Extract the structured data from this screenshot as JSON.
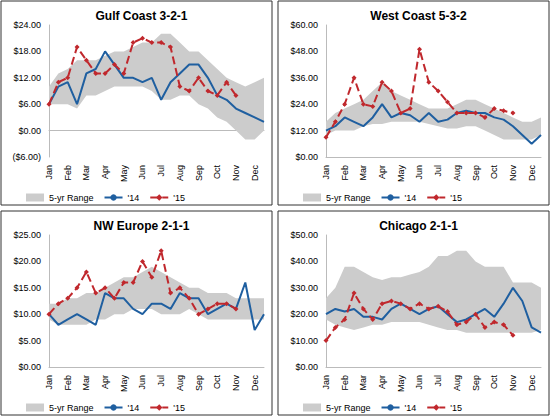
{
  "chart_data": [
    {
      "type": "line",
      "title": "Gulf Coast 3-2-1",
      "categories": [
        "Jan",
        null,
        "Feb",
        null,
        "Mar",
        null,
        "Apr",
        null,
        "May",
        null,
        "Jun",
        null,
        "Jul",
        null,
        "Aug",
        null,
        "Sep",
        null,
        "Oct",
        null,
        "Nov",
        null,
        "Dec",
        null
      ],
      "ylim": [
        -6,
        24
      ],
      "yticks": [
        {
          "value": -6,
          "label": "($6.00)"
        },
        {
          "value": 0,
          "label": "$0.00"
        },
        {
          "value": 6,
          "label": "$6.00"
        },
        {
          "value": 12,
          "label": "$12.00"
        },
        {
          "value": 18,
          "label": "$18.00"
        },
        {
          "value": 24,
          "label": "$24.00"
        }
      ],
      "grid": false,
      "legend": "bottom",
      "series": [
        {
          "name": "5-yr Range",
          "type": "range",
          "color": "#cccccc",
          "low": [
            6,
            6,
            6,
            5,
            8,
            8,
            9,
            10,
            10,
            10,
            10,
            9,
            7,
            7,
            8,
            8,
            6,
            5,
            3,
            2,
            0,
            -2,
            -2,
            0
          ],
          "high": [
            10,
            13,
            14,
            16,
            16,
            16,
            17,
            18,
            18,
            19,
            20,
            20,
            22,
            22,
            20,
            18,
            18,
            16,
            14,
            12,
            11,
            10,
            11,
            12
          ]
        },
        {
          "name": "'14",
          "type": "line",
          "color": "#1f5fa0",
          "line_style": "solid",
          "values": [
            6,
            10,
            11,
            6,
            13,
            14,
            18,
            15,
            12,
            12,
            11,
            12,
            7,
            11,
            13,
            15,
            15,
            12,
            8,
            7,
            5,
            4,
            3,
            2
          ]
        },
        {
          "name": "'15",
          "type": "line",
          "color": "#c0282d",
          "line_style": "dashed",
          "marker": "diamond",
          "values": [
            6,
            11,
            12,
            19,
            16,
            13,
            13,
            15,
            13,
            20,
            21,
            20,
            20,
            19,
            10,
            9,
            12,
            9,
            8,
            11,
            8,
            null,
            null,
            null
          ]
        }
      ]
    },
    {
      "type": "line",
      "title": "West Coast 5-3-2",
      "categories": [
        "Jan",
        null,
        "Feb",
        null,
        "Mar",
        null,
        "Apr",
        null,
        "May",
        null,
        "Jun",
        null,
        "Jul",
        null,
        "Aug",
        null,
        "Sep",
        null,
        "Oct",
        null,
        "Nov",
        null,
        "Dec",
        null
      ],
      "ylim": [
        0,
        60
      ],
      "yticks": [
        {
          "value": 0,
          "label": "$0.00"
        },
        {
          "value": 12,
          "label": "$12.00"
        },
        {
          "value": 24,
          "label": "$24.00"
        },
        {
          "value": 36,
          "label": "$36.00"
        },
        {
          "value": 48,
          "label": "$48.00"
        },
        {
          "value": 60,
          "label": "$60.00"
        }
      ],
      "grid": false,
      "legend": "bottom",
      "series": [
        {
          "name": "5-yr Range",
          "type": "range",
          "color": "#cccccc",
          "low": [
            10,
            12,
            12,
            12,
            14,
            15,
            15,
            16,
            16,
            16,
            16,
            15,
            14,
            13,
            13,
            14,
            14,
            12,
            10,
            8,
            8,
            8,
            8,
            10
          ],
          "high": [
            16,
            20,
            22,
            24,
            26,
            30,
            34,
            30,
            28,
            26,
            24,
            22,
            22,
            22,
            24,
            26,
            26,
            24,
            22,
            20,
            18,
            16,
            16,
            18
          ]
        },
        {
          "name": "'14",
          "type": "line",
          "color": "#1f5fa0",
          "line_style": "solid",
          "values": [
            12,
            14,
            18,
            16,
            14,
            18,
            24,
            18,
            20,
            19,
            16,
            20,
            16,
            17,
            20,
            21,
            20,
            20,
            18,
            17,
            14,
            10,
            6,
            10
          ]
        },
        {
          "name": "'15",
          "type": "line",
          "color": "#c0282d",
          "line_style": "dashed",
          "marker": "diamond",
          "values": [
            9,
            16,
            24,
            36,
            24,
            23,
            34,
            30,
            20,
            22,
            49,
            34,
            30,
            25,
            20,
            20,
            20,
            18,
            22,
            21,
            20,
            null,
            null,
            null
          ]
        }
      ]
    },
    {
      "type": "line",
      "title": "NW Europe 2-1-1",
      "categories": [
        "Jan",
        null,
        "Feb",
        null,
        "Mar",
        null,
        "Apr",
        null,
        "May",
        null,
        "Jun",
        null,
        "Jul",
        null,
        "Aug",
        null,
        "Sep",
        null,
        "Oct",
        null,
        "Nov",
        null,
        "Dec",
        null
      ],
      "ylim": [
        0,
        25
      ],
      "yticks": [
        {
          "value": 0,
          "label": "$0.00"
        },
        {
          "value": 5,
          "label": "$5.00"
        },
        {
          "value": 10,
          "label": "$10.00"
        },
        {
          "value": 15,
          "label": "$15.00"
        },
        {
          "value": 20,
          "label": "$20.00"
        },
        {
          "value": 25,
          "label": "$25.00"
        }
      ],
      "grid": false,
      "legend": "bottom",
      "series": [
        {
          "name": "5-yr Range",
          "type": "range",
          "color": "#cccccc",
          "low": [
            9,
            8,
            8,
            8,
            8,
            9,
            9,
            10,
            10,
            11,
            11,
            11,
            10,
            10,
            10,
            11,
            10,
            9,
            9,
            9,
            9,
            9,
            9,
            9
          ],
          "high": [
            12,
            12,
            13,
            13,
            14,
            14,
            15,
            16,
            17,
            17,
            18,
            19,
            18,
            17,
            16,
            15,
            15,
            14,
            14,
            14,
            13,
            13,
            13,
            13
          ]
        },
        {
          "name": "'14",
          "type": "line",
          "color": "#1f5fa0",
          "line_style": "solid",
          "values": [
            10,
            8,
            9,
            10,
            9,
            8,
            14,
            13,
            13,
            11,
            10,
            12,
            12,
            11,
            14,
            13,
            13,
            10,
            11,
            12,
            11,
            16,
            7,
            10
          ]
        },
        {
          "name": "'15",
          "type": "line",
          "color": "#c0282d",
          "line_style": "dashed",
          "marker": "diamond",
          "values": [
            10,
            12,
            13,
            15,
            18,
            14,
            15,
            13,
            16,
            16,
            20,
            17,
            22,
            14,
            15,
            13,
            10,
            11,
            12,
            12,
            11,
            null,
            null,
            null
          ]
        }
      ]
    },
    {
      "type": "line",
      "title": "Chicago 2-1-1",
      "categories": [
        "Jan",
        null,
        "Feb",
        null,
        "Mar",
        null,
        "Apr",
        null,
        "May",
        null,
        "Jun",
        null,
        "Jul",
        null,
        "Aug",
        null,
        "Sep",
        null,
        "Oct",
        null,
        "Nov",
        null,
        "Dec",
        null
      ],
      "ylim": [
        0,
        50
      ],
      "yticks": [
        {
          "value": 0,
          "label": "$0.00"
        },
        {
          "value": 10,
          "label": "$10.00"
        },
        {
          "value": 20,
          "label": "$20.00"
        },
        {
          "value": 30,
          "label": "$30.00"
        },
        {
          "value": 40,
          "label": "$40.00"
        },
        {
          "value": 50,
          "label": "$50.00"
        }
      ],
      "grid": false,
      "legend": "bottom",
      "series": [
        {
          "name": "5-yr Range",
          "type": "range",
          "color": "#cccccc",
          "low": [
            18,
            16,
            15,
            14,
            15,
            16,
            16,
            17,
            17,
            17,
            17,
            16,
            15,
            14,
            14,
            13,
            13,
            13,
            13,
            13,
            13,
            13,
            13,
            14
          ],
          "high": [
            26,
            30,
            38,
            38,
            36,
            34,
            33,
            34,
            34,
            35,
            36,
            38,
            42,
            42,
            44,
            44,
            40,
            38,
            38,
            38,
            32,
            32,
            32,
            30
          ]
        },
        {
          "name": "'14",
          "type": "line",
          "color": "#1f5fa0",
          "line_style": "solid",
          "values": [
            20,
            22,
            21,
            22,
            19,
            19,
            18,
            22,
            24,
            22,
            20,
            22,
            23,
            20,
            17,
            18,
            20,
            22,
            19,
            24,
            30,
            25,
            15,
            13
          ]
        },
        {
          "name": "'15",
          "type": "line",
          "color": "#c0282d",
          "line_style": "dashed",
          "marker": "diamond",
          "values": [
            10,
            15,
            18,
            28,
            22,
            18,
            24,
            25,
            24,
            22,
            24,
            22,
            23,
            21,
            16,
            17,
            20,
            15,
            17,
            16,
            12,
            null,
            null,
            null
          ]
        }
      ]
    }
  ]
}
